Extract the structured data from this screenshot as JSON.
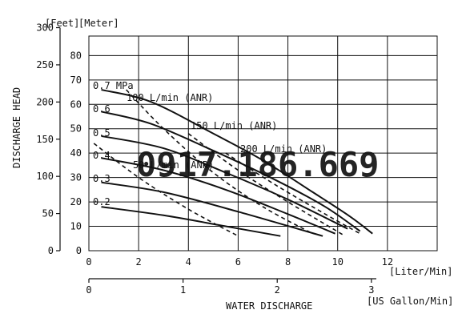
{
  "chart_data": {
    "type": "line",
    "title": "",
    "units": {
      "left_head_unit": "[Feet]",
      "right_head_unit": "[Meter]",
      "flow_lpm_unit": "[Liter/Min]",
      "flow_gpm_unit": "[US Gallon/Min]"
    },
    "ylabel": "DISCHARGE HEAD",
    "xlabel": "WATER DISCHARGE",
    "axes": {
      "x_liter_min": {
        "range": [
          0,
          14
        ],
        "ticks": [
          "0",
          "2",
          "4",
          "6",
          "8",
          "10",
          "12"
        ]
      },
      "y_meter": {
        "range": [
          0,
          88
        ],
        "ticks": [
          "0",
          "10",
          "20",
          "30",
          "40",
          "50",
          "60",
          "70",
          "80"
        ]
      },
      "y_feet": {
        "range": [
          0,
          300
        ],
        "ticks": [
          "0",
          "50",
          "100",
          "150",
          "200",
          "250",
          "300"
        ]
      },
      "x_us_gallon_min": {
        "range": [
          0,
          3.3
        ],
        "ticks": [
          "0",
          "1",
          "2",
          "3"
        ]
      }
    },
    "grid": true,
    "series": [
      {
        "name": "0.7 MPa",
        "style": "solid",
        "x": [
          0.5,
          2.5,
          5,
          7,
          9,
          10.5,
          11.4
        ],
        "y": [
          66,
          61,
          48,
          37,
          24,
          14,
          7
        ]
      },
      {
        "name": "0.6",
        "style": "solid",
        "x": [
          0.5,
          2.5,
          5,
          7.5,
          9.5,
          10.9
        ],
        "y": [
          57,
          52,
          41,
          29,
          18,
          8
        ]
      },
      {
        "name": "0.5",
        "style": "solid",
        "x": [
          0.5,
          3,
          5.5,
          8,
          10.4
        ],
        "y": [
          47,
          42,
          32,
          21,
          9
        ]
      },
      {
        "name": "0.4",
        "style": "solid",
        "x": [
          0.5,
          3,
          5.5,
          8,
          9.9
        ],
        "y": [
          38,
          33,
          25,
          15,
          7
        ]
      },
      {
        "name": "0.3",
        "style": "solid",
        "x": [
          0.5,
          3,
          6,
          9.4
        ],
        "y": [
          28,
          24,
          16,
          6
        ]
      },
      {
        "name": "0.2",
        "style": "solid",
        "x": [
          0.5,
          3,
          5.5,
          7.7
        ],
        "y": [
          18,
          14.5,
          10,
          6
        ]
      },
      {
        "name": "50 L/min (ANR)",
        "style": "dashed",
        "x": [
          0.2,
          2,
          4,
          6
        ],
        "y": [
          44,
          30,
          17,
          6
        ]
      },
      {
        "name": "100 L/min (ANR)",
        "style": "dashed",
        "x": [
          1.5,
          3,
          5,
          7,
          9
        ],
        "y": [
          66,
          50,
          32,
          18,
          7
        ]
      },
      {
        "name": "150 L/min (ANR)",
        "style": "dashed",
        "x": [
          4,
          6,
          8,
          10.3
        ],
        "y": [
          48,
          33,
          20,
          6
        ]
      },
      {
        "name": "200 L/min (ANR)",
        "style": "dashed",
        "x": [
          5.5,
          7.5,
          9.5,
          10.9
        ],
        "y": [
          40,
          27,
          15,
          7
        ]
      }
    ],
    "curve_labels": {
      "p07": "0.7 MPa",
      "p06": "0.6",
      "p05": "0.5",
      "p04": "0.4",
      "p03": "0.3",
      "p02": "0.2",
      "a100": "100 L/min (ANR)",
      "a150": "150 L/min (ANR)",
      "a200": "200 L/min (ANR)",
      "a50": "50 L/min (ANR)"
    }
  },
  "watermark": {
    "text": "0917.186.669",
    "color": "#22b14c"
  }
}
